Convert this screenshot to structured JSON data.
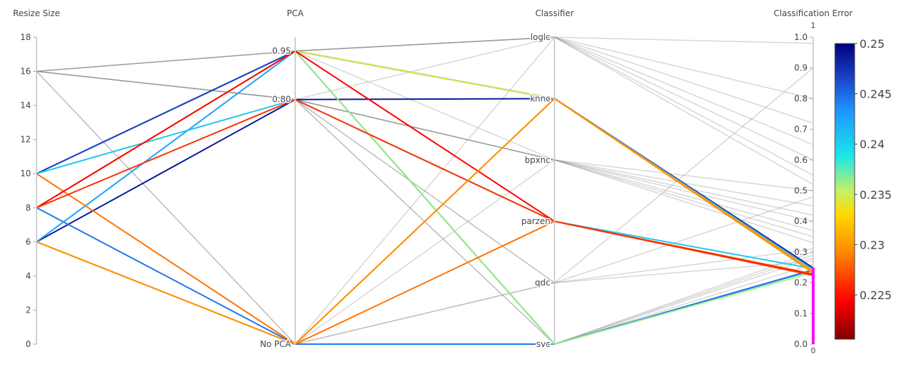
{
  "chart_data": {
    "type": "parallel_coordinates",
    "dimensions": [
      {
        "label": "Resize Size",
        "type": "numeric",
        "range": [
          0,
          18
        ],
        "ticks": [
          0,
          2,
          4,
          6,
          8,
          10,
          12,
          14,
          16,
          18
        ]
      },
      {
        "label": "PCA",
        "type": "categorical",
        "categories": [
          "No PCA",
          "0.80",
          "0.95"
        ]
      },
      {
        "label": "Classifier",
        "type": "categorical",
        "categories": [
          "svc",
          "qdc",
          "parzen",
          "bpxnc",
          "knnc",
          "loglc"
        ]
      },
      {
        "label": "Classification Error",
        "type": "numeric",
        "range": [
          0,
          1
        ],
        "ticks": [
          0.0,
          0.1,
          0.2,
          0.3,
          0.4,
          0.5,
          0.6,
          0.7,
          0.8,
          0.9,
          1.0
        ],
        "tick_labels": [
          "0.0",
          "0.1",
          "0.2",
          "0.3",
          "0.4",
          "0.5",
          "0.6",
          "0.7",
          "0.8",
          "0.9",
          "1.0"
        ],
        "constraint_range": [
          0,
          0.25
        ],
        "constraint_labels": [
          "1",
          "0"
        ]
      }
    ],
    "colorscale": {
      "range": [
        0.2206,
        0.25
      ],
      "ticks": [
        0.225,
        0.23,
        0.235,
        0.24,
        0.245,
        0.25
      ],
      "tick_labels": [
        "0.225",
        "0.23",
        "0.235",
        "0.24",
        "0.245",
        "0.25"
      ],
      "stops": [
        [
          0.0,
          "#7f0000"
        ],
        [
          0.13,
          "#ff0000"
        ],
        [
          0.3,
          "#ff8c00"
        ],
        [
          0.42,
          "#ffd700"
        ],
        [
          0.5,
          "#c8f064"
        ],
        [
          0.62,
          "#19e8e8"
        ],
        [
          0.78,
          "#1e90ff"
        ],
        [
          0.88,
          "#1a46c8"
        ],
        [
          1.0,
          "#000080"
        ]
      ]
    },
    "lines_highlighted": [
      {
        "resize": 10,
        "pca": "0.95",
        "classifier": "knnc",
        "error": 0.248,
        "color_value": 0.2495
      },
      {
        "resize": 6,
        "pca": "0.80",
        "classifier": "knnc",
        "error": 0.245,
        "color_value": 0.2488
      },
      {
        "resize": 10,
        "pca": "0.95",
        "classifier": "svc",
        "error": 0.242,
        "color_value": 0.2465
      },
      {
        "resize": 8,
        "pca": "No PCA",
        "classifier": "svc",
        "error": 0.241,
        "color_value": 0.2445
      },
      {
        "resize": 6,
        "pca": "0.95",
        "classifier": "knnc",
        "error": 0.244,
        "color_value": 0.2425
      },
      {
        "resize": 10,
        "pca": "0.80",
        "classifier": "parzen",
        "error": 0.246,
        "color_value": 0.2405
      },
      {
        "resize": 8,
        "pca": "0.95",
        "classifier": "svc",
        "error": 0.234,
        "color_value": 0.2362
      },
      {
        "resize": 8,
        "pca": "0.95",
        "classifier": "knnc",
        "error": 0.236,
        "color_value": 0.2345
      },
      {
        "resize": 6,
        "pca": "No PCA",
        "classifier": "knnc",
        "error": 0.238,
        "color_value": 0.2305
      },
      {
        "resize": 10,
        "pca": "No PCA",
        "classifier": "parzen",
        "error": 0.229,
        "color_value": 0.2285
      },
      {
        "resize": 8,
        "pca": "0.95",
        "classifier": "parzen",
        "error": 0.226,
        "color_value": 0.2245
      },
      {
        "resize": 8,
        "pca": "0.80",
        "classifier": "parzen",
        "error": 0.224,
        "color_value": 0.2262
      },
      {
        "resize": 6,
        "pca": "No PCA",
        "classifier": "knnc",
        "error": 0.232,
        "color_value": 0.2295
      }
    ],
    "lines_context": [
      {
        "resize": 16,
        "pca": "0.95",
        "classifier": "loglc",
        "error": 0.98
      },
      {
        "resize": 16,
        "pca": "0.95",
        "classifier": "loglc",
        "error": 0.8
      },
      {
        "resize": 16,
        "pca": "0.95",
        "classifier": "loglc",
        "error": 0.65
      },
      {
        "resize": 16,
        "pca": "0.80",
        "classifier": "loglc",
        "error": 0.55
      },
      {
        "resize": 16,
        "pca": "0.80",
        "classifier": "bpxnc",
        "error": 0.5
      },
      {
        "resize": 16,
        "pca": "0.80",
        "classifier": "bpxnc",
        "error": 0.45
      },
      {
        "resize": 16,
        "pca": "0.95",
        "classifier": "bpxnc",
        "error": 0.4
      },
      {
        "resize": 16,
        "pca": "No PCA",
        "classifier": "qdc",
        "error": 0.9
      },
      {
        "resize": 16,
        "pca": "No PCA",
        "classifier": "svc",
        "error": 0.3
      },
      {
        "resize": 16,
        "pca": "0.80",
        "classifier": "qdc",
        "error": 0.27
      },
      {
        "resize": 10,
        "pca": "0.80",
        "classifier": "bpxnc",
        "error": 0.35
      },
      {
        "resize": 10,
        "pca": "0.95",
        "classifier": "loglc",
        "error": 0.6
      },
      {
        "resize": 10,
        "pca": "0.80",
        "classifier": "svc",
        "error": 0.28
      },
      {
        "resize": 8,
        "pca": "0.80",
        "classifier": "bpxnc",
        "error": 0.42
      },
      {
        "resize": 8,
        "pca": "0.95",
        "classifier": "loglc",
        "error": 0.72
      },
      {
        "resize": 8,
        "pca": "No PCA",
        "classifier": "qdc",
        "error": 0.48
      },
      {
        "resize": 6,
        "pca": "0.80",
        "classifier": "qdc",
        "error": 0.31
      },
      {
        "resize": 6,
        "pca": "0.80",
        "classifier": "bpxnc",
        "error": 0.37
      },
      {
        "resize": 6,
        "pca": "No PCA",
        "classifier": "loglc",
        "error": 0.52
      },
      {
        "resize": 6,
        "pca": "No PCA",
        "classifier": "svc",
        "error": 0.29
      },
      {
        "resize": 16,
        "pca": "0.80",
        "classifier": "svc",
        "error": 0.26
      },
      {
        "resize": 10,
        "pca": "No PCA",
        "classifier": "bpxnc",
        "error": 0.33
      }
    ]
  }
}
